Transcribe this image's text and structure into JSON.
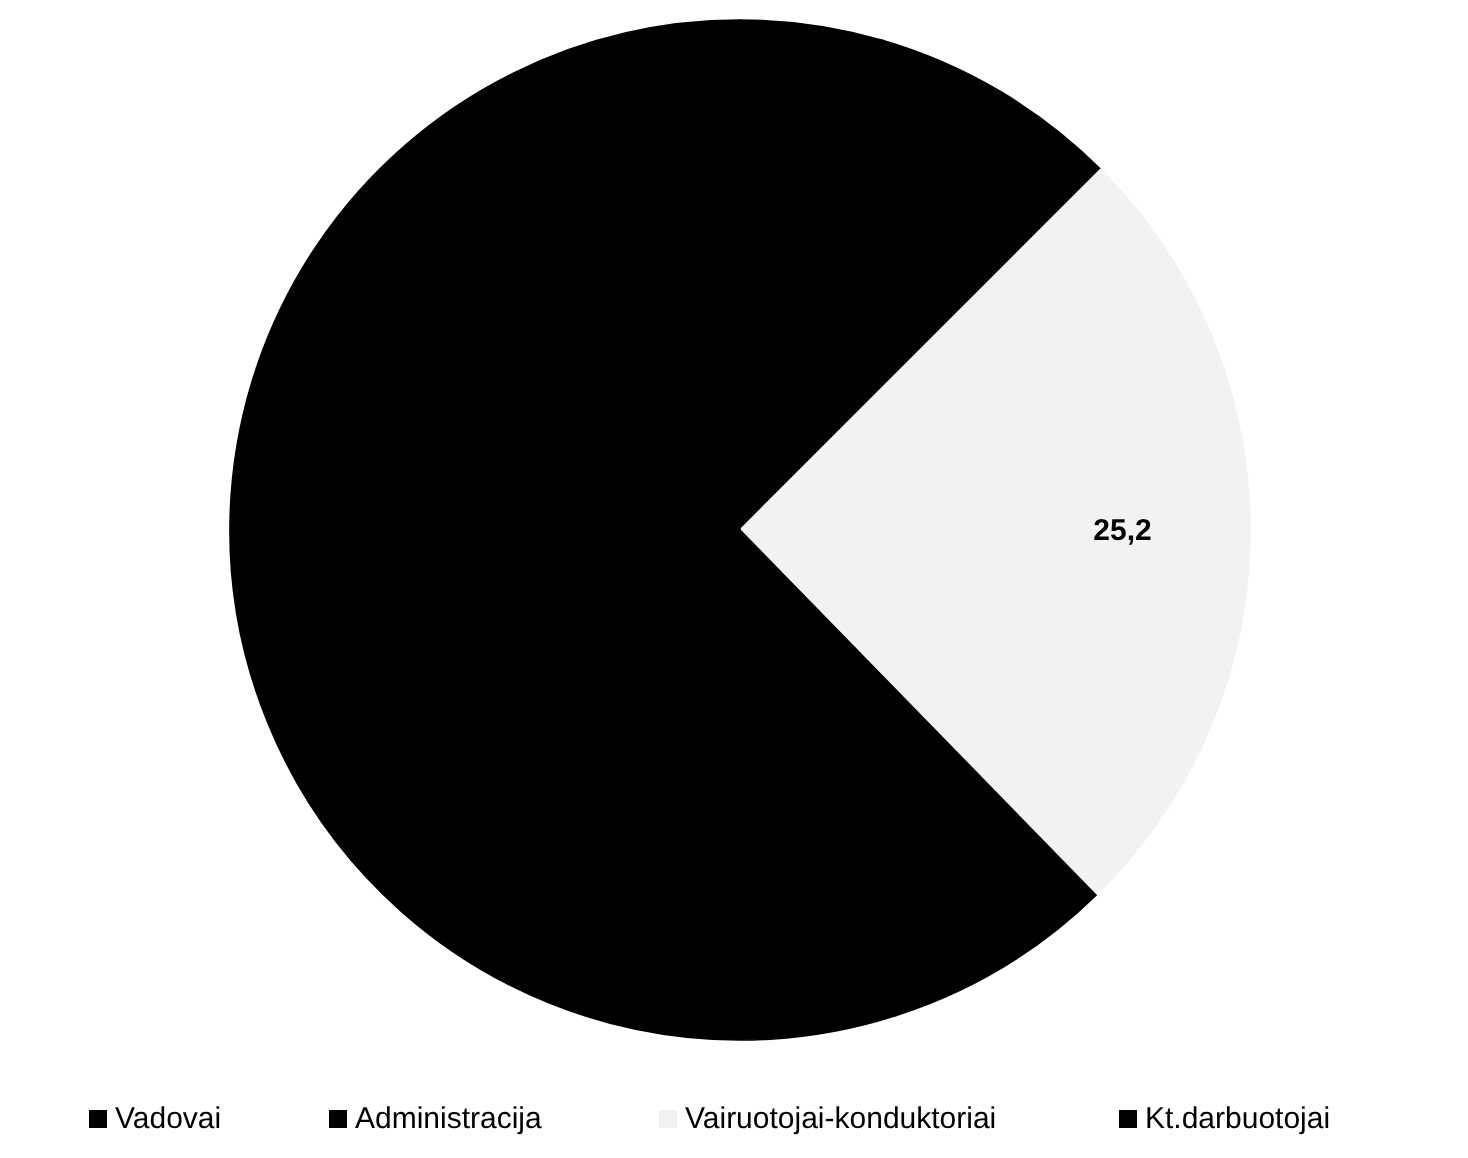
{
  "chart_data": {
    "type": "pie",
    "categories": [
      "Vadovai",
      "Administracija",
      "Vairuotojai-konduktoriai",
      "Kt.darbuotojai"
    ],
    "values": [
      4.5,
      8,
      25.2,
      62.3
    ],
    "colors": [
      "#000000",
      "#000000",
      "#f2f2f2",
      "#000000"
    ],
    "value_labels": [
      null,
      null,
      "25,2",
      null
    ],
    "legend": "bottom"
  }
}
